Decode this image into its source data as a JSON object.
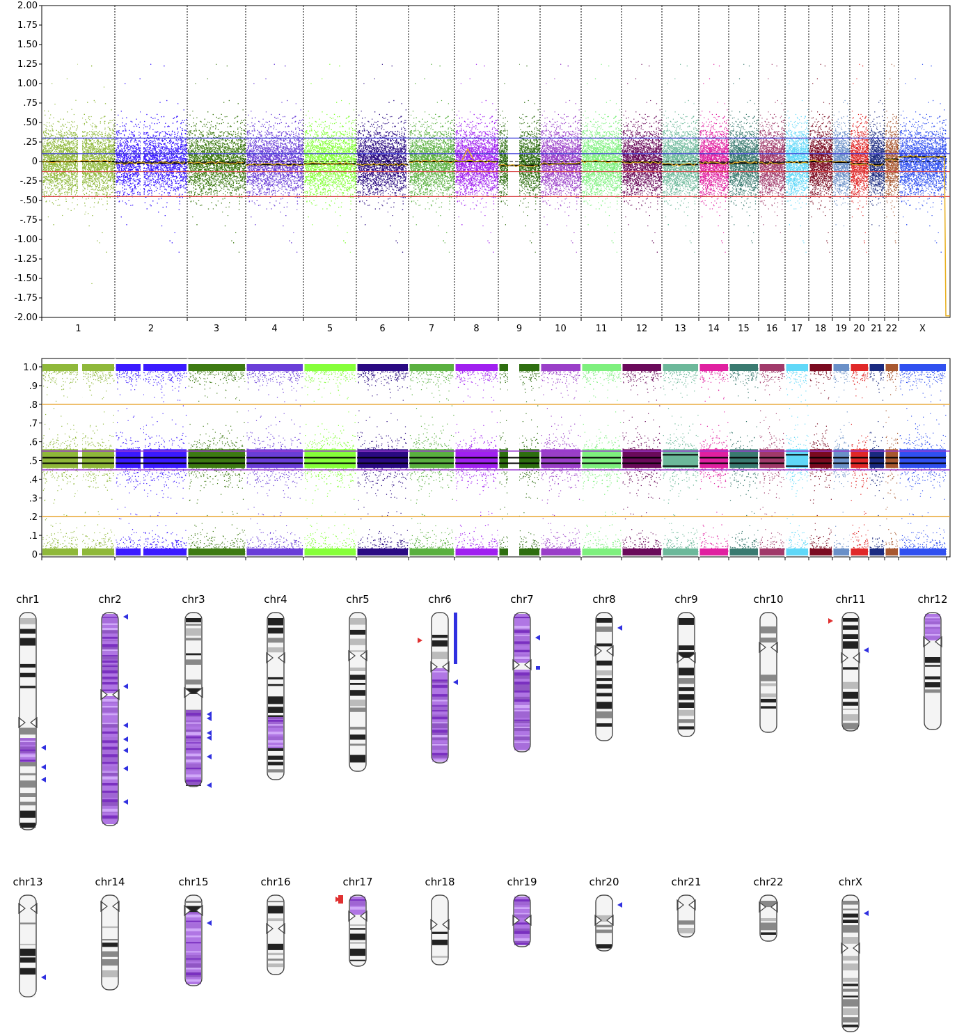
{
  "chart_data": [
    {
      "type": "scatter",
      "title": "",
      "xlabel": "",
      "ylabel": "",
      "ylim": [
        -2.0,
        2.0
      ],
      "yticks": [
        "2.00",
        "1.75",
        "1.50",
        "1.25",
        "1.00",
        ".75",
        ".50",
        ".25",
        "0",
        "-.25",
        "-.50",
        "-.75",
        "-1.00",
        "-1.25",
        "-1.50",
        "-1.75",
        "-2.00"
      ],
      "categories": [
        "1",
        "2",
        "3",
        "4",
        "5",
        "6",
        "7",
        "8",
        "9",
        "10",
        "11",
        "12",
        "13",
        "14",
        "15",
        "16",
        "17",
        "18",
        "19",
        "20",
        "21",
        "22",
        "X"
      ],
      "reference_lines": [
        {
          "y": 0.3,
          "color": "#3a3ad8"
        },
        {
          "y": 0.1,
          "color": "#3a3ad8"
        },
        {
          "y": 0.0,
          "color": "#000000"
        },
        {
          "y": -0.13,
          "color": "#d84040"
        },
        {
          "y": -0.45,
          "color": "#d84040"
        }
      ],
      "segment_means": [
        0.0,
        -0.02,
        -0.02,
        -0.04,
        -0.03,
        -0.04,
        0.0,
        0.0,
        -0.05,
        -0.03,
        0.0,
        -0.01,
        -0.04,
        -0.02,
        -0.02,
        -0.02,
        -0.01,
        0.0,
        -0.01,
        -0.03,
        -0.04,
        0.03,
        0.06
      ],
      "grid": "vertical separators between chromosomes"
    },
    {
      "type": "scatter",
      "title": "",
      "xlabel": "",
      "ylabel": "",
      "ylim": [
        0,
        1.0
      ],
      "yticks": [
        "1.0",
        ".9",
        ".8",
        ".7",
        ".6",
        ".5",
        ".4",
        ".3",
        ".2",
        ".1",
        "0"
      ],
      "categories": [
        "1",
        "2",
        "3",
        "4",
        "5",
        "6",
        "7",
        "8",
        "9",
        "10",
        "11",
        "12",
        "13",
        "14",
        "15",
        "16",
        "17",
        "18",
        "19",
        "20",
        "21",
        "22",
        "X"
      ],
      "reference_lines": [
        {
          "y": 0.8,
          "color": "#e8a630"
        },
        {
          "y": 0.55,
          "color": "#9a3ad0"
        },
        {
          "y": 0.45,
          "color": "#9a3ad0"
        },
        {
          "y": 0.2,
          "color": "#e8a630"
        }
      ],
      "bands": [
        {
          "center": 1.0,
          "spread": 0.04
        },
        {
          "center": 0.5,
          "spread": 0.09
        },
        {
          "center": 0.0,
          "spread": 0.04
        }
      ]
    }
  ],
  "chromosome_colors": [
    "#8fb83a",
    "#3b1aff",
    "#3d7a12",
    "#6a3ed8",
    "#86ff3a",
    "#2a0a82",
    "#5ab040",
    "#a020f0",
    "#2e6e10",
    "#9a3fc8",
    "#7ef07e",
    "#6a0a5a",
    "#6cb89a",
    "#e020a0",
    "#3a7a70",
    "#a03a6a",
    "#60d8f8",
    "#7a0a20",
    "#6a90c8",
    "#e02828",
    "#1a2a80",
    "#a85830",
    "#3050f0"
  ],
  "ideogram": {
    "row1": [
      "chr1",
      "chr2",
      "chr3",
      "chr4",
      "chr5",
      "chr6",
      "chr7",
      "chr8",
      "chr9",
      "chr10",
      "chr11",
      "chr12"
    ],
    "row2": [
      "chr13",
      "chr14",
      "chr15",
      "chr16",
      "chr17",
      "chr18",
      "chr19",
      "chr20",
      "chr21",
      "chr22",
      "chrX"
    ],
    "highlight_color": "#a35fe0",
    "marker_color": "#3030e0",
    "alert_color": "#e03030"
  }
}
